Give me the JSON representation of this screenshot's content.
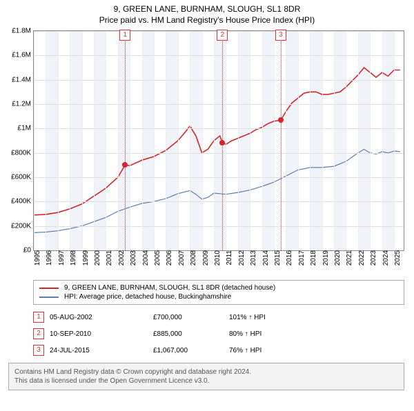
{
  "title_line1": "9, GREEN LANE, BURNHAM, SLOUGH, SL1 8DR",
  "title_line2": "Price paid vs. HM Land Registry's House Price Index (HPI)",
  "title_fontsize": 12,
  "chart": {
    "type": "line",
    "background_color": "#ffffff",
    "band_color": "#f0f4fa",
    "grid_color": "#dddddd",
    "vgrid_color": "#eeeeee",
    "border_color": "#888888",
    "xlim": [
      1995,
      2025.8
    ],
    "ylim": [
      0,
      1800000
    ],
    "ytick_step": 200000,
    "ytick_labels": [
      "£0",
      "£200K",
      "£400K",
      "£600K",
      "£800K",
      "£1M",
      "£1.2M",
      "£1.4M",
      "£1.6M",
      "£1.8M"
    ],
    "xticks": [
      1995,
      1996,
      1997,
      1998,
      1999,
      2000,
      2001,
      2002,
      2003,
      2004,
      2005,
      2006,
      2007,
      2008,
      2009,
      2010,
      2011,
      2012,
      2013,
      2014,
      2015,
      2016,
      2017,
      2018,
      2019,
      2020,
      2021,
      2022,
      2023,
      2024,
      2025
    ],
    "tick_fontsize": 10,
    "line_width_red": 1.6,
    "line_width_blue": 1.2,
    "series": {
      "property": {
        "color": "#d8232a",
        "label": "9, GREEN LANE, BURNHAM, SLOUGH, SL1 8DR (detached house)",
        "points": [
          [
            1995.0,
            290000
          ],
          [
            1996.0,
            295000
          ],
          [
            1997.0,
            310000
          ],
          [
            1998.0,
            340000
          ],
          [
            1999.0,
            380000
          ],
          [
            2000.0,
            445000
          ],
          [
            2001.0,
            510000
          ],
          [
            2002.0,
            600000
          ],
          [
            2002.6,
            700000
          ],
          [
            2003.0,
            695000
          ],
          [
            2004.0,
            740000
          ],
          [
            2005.0,
            770000
          ],
          [
            2006.0,
            820000
          ],
          [
            2007.0,
            900000
          ],
          [
            2007.6,
            970000
          ],
          [
            2008.0,
            1020000
          ],
          [
            2008.5,
            940000
          ],
          [
            2009.0,
            800000
          ],
          [
            2009.5,
            830000
          ],
          [
            2010.0,
            900000
          ],
          [
            2010.5,
            940000
          ],
          [
            2010.7,
            885000
          ],
          [
            2011.0,
            870000
          ],
          [
            2011.5,
            900000
          ],
          [
            2012.0,
            920000
          ],
          [
            2012.5,
            940000
          ],
          [
            2013.0,
            960000
          ],
          [
            2013.5,
            990000
          ],
          [
            2014.0,
            1010000
          ],
          [
            2014.5,
            1040000
          ],
          [
            2015.0,
            1060000
          ],
          [
            2015.56,
            1067000
          ],
          [
            2016.0,
            1140000
          ],
          [
            2016.5,
            1210000
          ],
          [
            2017.0,
            1250000
          ],
          [
            2017.5,
            1290000
          ],
          [
            2018.0,
            1300000
          ],
          [
            2018.5,
            1300000
          ],
          [
            2019.0,
            1280000
          ],
          [
            2019.5,
            1280000
          ],
          [
            2020.0,
            1290000
          ],
          [
            2020.5,
            1300000
          ],
          [
            2021.0,
            1340000
          ],
          [
            2021.5,
            1390000
          ],
          [
            2022.0,
            1440000
          ],
          [
            2022.5,
            1500000
          ],
          [
            2023.0,
            1460000
          ],
          [
            2023.5,
            1420000
          ],
          [
            2024.0,
            1460000
          ],
          [
            2024.5,
            1430000
          ],
          [
            2025.0,
            1480000
          ],
          [
            2025.5,
            1480000
          ]
        ]
      },
      "hpi": {
        "color": "#5a7fb5",
        "label": "HPI: Average price, detached house, Buckinghamshire",
        "points": [
          [
            1995.0,
            145000
          ],
          [
            1996.0,
            150000
          ],
          [
            1997.0,
            160000
          ],
          [
            1998.0,
            178000
          ],
          [
            1999.0,
            200000
          ],
          [
            2000.0,
            235000
          ],
          [
            2001.0,
            270000
          ],
          [
            2002.0,
            320000
          ],
          [
            2003.0,
            355000
          ],
          [
            2004.0,
            385000
          ],
          [
            2005.0,
            400000
          ],
          [
            2006.0,
            425000
          ],
          [
            2007.0,
            465000
          ],
          [
            2008.0,
            490000
          ],
          [
            2008.5,
            460000
          ],
          [
            2009.0,
            420000
          ],
          [
            2009.5,
            435000
          ],
          [
            2010.0,
            470000
          ],
          [
            2011.0,
            460000
          ],
          [
            2012.0,
            475000
          ],
          [
            2013.0,
            495000
          ],
          [
            2014.0,
            525000
          ],
          [
            2015.0,
            560000
          ],
          [
            2016.0,
            610000
          ],
          [
            2017.0,
            660000
          ],
          [
            2018.0,
            680000
          ],
          [
            2019.0,
            680000
          ],
          [
            2020.0,
            690000
          ],
          [
            2021.0,
            730000
          ],
          [
            2022.0,
            800000
          ],
          [
            2022.5,
            830000
          ],
          [
            2023.0,
            800000
          ],
          [
            2023.5,
            790000
          ],
          [
            2024.0,
            810000
          ],
          [
            2024.5,
            800000
          ],
          [
            2025.0,
            815000
          ],
          [
            2025.5,
            810000
          ]
        ]
      }
    },
    "markers": [
      {
        "n": "1",
        "x": 2002.6,
        "y": 700000
      },
      {
        "n": "2",
        "x": 2010.7,
        "y": 885000
      },
      {
        "n": "3",
        "x": 2015.56,
        "y": 1067000
      }
    ],
    "dot_color": "#d8232a"
  },
  "legend": {
    "items": [
      {
        "color": "#d8232a",
        "label_key": "chart.series.property.label"
      },
      {
        "color": "#5a7fb5",
        "label_key": "chart.series.hpi.label"
      }
    ]
  },
  "events": [
    {
      "n": "1",
      "date": "05-AUG-2002",
      "price": "£700,000",
      "pct": "101% ↑ HPI"
    },
    {
      "n": "2",
      "date": "10-SEP-2010",
      "price": "£885,000",
      "pct": "80% ↑ HPI"
    },
    {
      "n": "3",
      "date": "24-JUL-2015",
      "price": "£1,067,000",
      "pct": "76% ↑ HPI"
    }
  ],
  "footer": {
    "line1": "Contains HM Land Registry data © Crown copyright and database right 2024.",
    "line2": "This data is licensed under the Open Government Licence v3.0."
  },
  "colors": {
    "marker_red": "#e03030",
    "footer_bg": "#f3f3f3",
    "footer_text": "#555555"
  }
}
